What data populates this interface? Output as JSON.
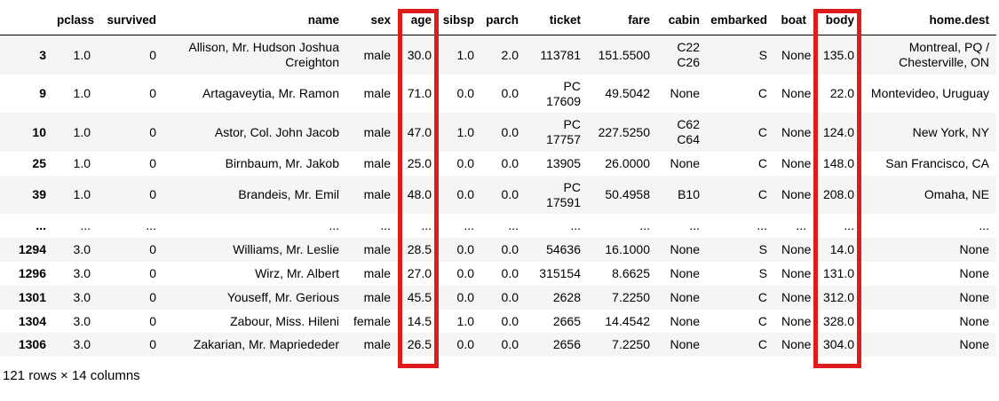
{
  "table": {
    "columns": [
      "",
      "pclass",
      "survived",
      "name",
      "sex",
      "age",
      "sibsp",
      "parch",
      "ticket",
      "fare",
      "cabin",
      "embarked",
      "boat",
      "body",
      "home.dest"
    ],
    "rows": [
      [
        "3",
        "1.0",
        "0",
        "Allison, Mr. Hudson Joshua Creighton",
        "male",
        "30.0",
        "1.0",
        "2.0",
        "113781",
        "151.5500",
        "C22 C26",
        "S",
        "None",
        "135.0",
        "Montreal, PQ / Chesterville, ON"
      ],
      [
        "9",
        "1.0",
        "0",
        "Artagaveytia, Mr. Ramon",
        "male",
        "71.0",
        "0.0",
        "0.0",
        "PC 17609",
        "49.5042",
        "None",
        "C",
        "None",
        "22.0",
        "Montevideo, Uruguay"
      ],
      [
        "10",
        "1.0",
        "0",
        "Astor, Col. John Jacob",
        "male",
        "47.0",
        "1.0",
        "0.0",
        "PC 17757",
        "227.5250",
        "C62 C64",
        "C",
        "None",
        "124.0",
        "New York, NY"
      ],
      [
        "25",
        "1.0",
        "0",
        "Birnbaum, Mr. Jakob",
        "male",
        "25.0",
        "0.0",
        "0.0",
        "13905",
        "26.0000",
        "None",
        "C",
        "None",
        "148.0",
        "San Francisco, CA"
      ],
      [
        "39",
        "1.0",
        "0",
        "Brandeis, Mr. Emil",
        "male",
        "48.0",
        "0.0",
        "0.0",
        "PC 17591",
        "50.4958",
        "B10",
        "C",
        "None",
        "208.0",
        "Omaha, NE"
      ],
      [
        "...",
        "...",
        "...",
        "...",
        "...",
        "...",
        "...",
        "...",
        "...",
        "...",
        "...",
        "...",
        "...",
        "...",
        "..."
      ],
      [
        "1294",
        "3.0",
        "0",
        "Williams, Mr. Leslie",
        "male",
        "28.5",
        "0.0",
        "0.0",
        "54636",
        "16.1000",
        "None",
        "S",
        "None",
        "14.0",
        "None"
      ],
      [
        "1296",
        "3.0",
        "0",
        "Wirz, Mr. Albert",
        "male",
        "27.0",
        "0.0",
        "0.0",
        "315154",
        "8.6625",
        "None",
        "S",
        "None",
        "131.0",
        "None"
      ],
      [
        "1301",
        "3.0",
        "0",
        "Youseff, Mr. Gerious",
        "male",
        "45.5",
        "0.0",
        "0.0",
        "2628",
        "7.2250",
        "None",
        "C",
        "None",
        "312.0",
        "None"
      ],
      [
        "1304",
        "3.0",
        "0",
        "Zabour, Miss. Hileni",
        "female",
        "14.5",
        "1.0",
        "0.0",
        "2665",
        "14.4542",
        "None",
        "C",
        "None",
        "328.0",
        "None"
      ],
      [
        "1306",
        "3.0",
        "0",
        "Zakarian, Mr. Mapriededer",
        "male",
        "26.5",
        "0.0",
        "0.0",
        "2656",
        "7.2250",
        "None",
        "C",
        "None",
        "304.0",
        "None"
      ]
    ],
    "footer": "121 rows × 14 columns"
  },
  "annotations": {
    "highlight_color": "#e01b1b",
    "highlighted_columns": [
      "age",
      "body"
    ]
  }
}
